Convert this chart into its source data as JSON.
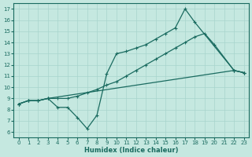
{
  "xlabel": "Humidex (Indice chaleur)",
  "xlim": [
    -0.5,
    23.5
  ],
  "ylim": [
    5.5,
    17.5
  ],
  "xticks": [
    0,
    1,
    2,
    3,
    4,
    5,
    6,
    7,
    8,
    9,
    10,
    11,
    12,
    13,
    14,
    15,
    16,
    17,
    18,
    19,
    20,
    21,
    22,
    23
  ],
  "yticks": [
    6,
    7,
    8,
    9,
    10,
    11,
    12,
    13,
    14,
    15,
    16,
    17
  ],
  "bg_color": "#c5e8e0",
  "grid_color": "#a8d4cc",
  "line_color": "#1a6b60",
  "line1_x": [
    0,
    1,
    2,
    3,
    22,
    23
  ],
  "line1_y": [
    8.5,
    8.8,
    8.8,
    9.0,
    11.5,
    11.3
  ],
  "line2_x": [
    0,
    1,
    2,
    3,
    4,
    5,
    6,
    7,
    8,
    9,
    10,
    11,
    12,
    13,
    14,
    15,
    16,
    17,
    18,
    22,
    23
  ],
  "line2_y": [
    8.5,
    8.8,
    8.8,
    9.0,
    8.2,
    8.2,
    7.3,
    6.3,
    7.5,
    11.2,
    13.0,
    13.2,
    13.5,
    13.8,
    14.3,
    14.8,
    15.3,
    17.0,
    15.8,
    11.5,
    11.3
  ],
  "line3_x": [
    0,
    1,
    2,
    3,
    4,
    5,
    6,
    7,
    8,
    9,
    10,
    11,
    12,
    13,
    14,
    15,
    16,
    17,
    18,
    19,
    20,
    22,
    23
  ],
  "line3_y": [
    8.5,
    8.8,
    8.8,
    9.0,
    9.0,
    9.0,
    9.2,
    9.5,
    9.8,
    10.2,
    10.5,
    11.0,
    11.5,
    12.0,
    12.5,
    13.0,
    13.5,
    14.0,
    14.5,
    14.8,
    13.8,
    11.5,
    11.3
  ]
}
